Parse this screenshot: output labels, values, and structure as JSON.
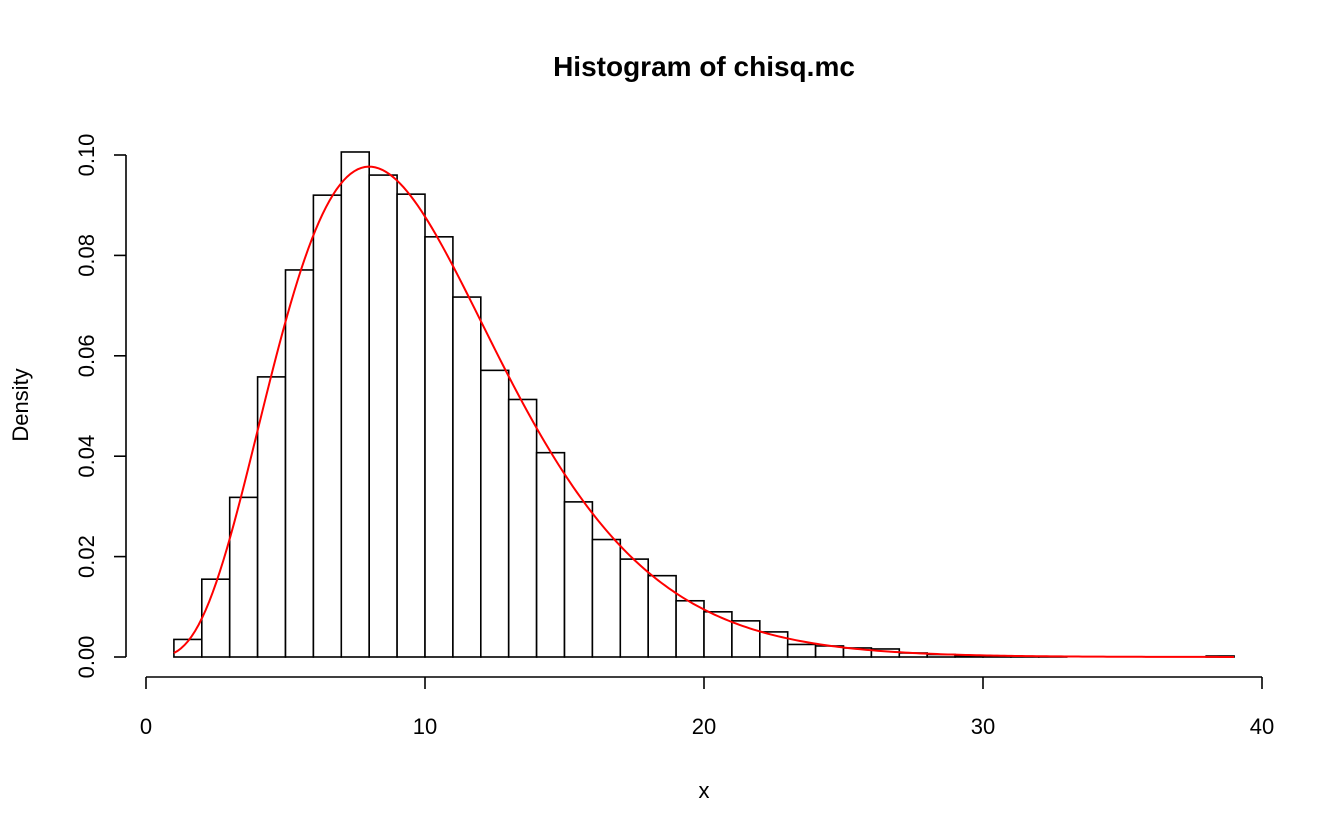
{
  "chart_data": {
    "type": "bar",
    "title": "Histogram of chisq.mc",
    "xlabel": "x",
    "ylabel": "Density",
    "xlim": [
      0,
      40
    ],
    "ylim": [
      0,
      0.1
    ],
    "x_ticks": [
      "0",
      "10",
      "20",
      "30",
      "40"
    ],
    "y_ticks": [
      "0.00",
      "0.02",
      "0.04",
      "0.06",
      "0.08",
      "0.10"
    ],
    "grid": false,
    "bin_width": 1,
    "bins": [
      {
        "x0": 1,
        "x1": 2,
        "density": 0.0035
      },
      {
        "x0": 2,
        "x1": 3,
        "density": 0.0155
      },
      {
        "x0": 3,
        "x1": 4,
        "density": 0.0318
      },
      {
        "x0": 4,
        "x1": 5,
        "density": 0.0558
      },
      {
        "x0": 5,
        "x1": 6,
        "density": 0.0771
      },
      {
        "x0": 6,
        "x1": 7,
        "density": 0.092
      },
      {
        "x0": 7,
        "x1": 8,
        "density": 0.1006
      },
      {
        "x0": 8,
        "x1": 9,
        "density": 0.096
      },
      {
        "x0": 9,
        "x1": 10,
        "density": 0.0922
      },
      {
        "x0": 10,
        "x1": 11,
        "density": 0.0837
      },
      {
        "x0": 11,
        "x1": 12,
        "density": 0.0717
      },
      {
        "x0": 12,
        "x1": 13,
        "density": 0.0571
      },
      {
        "x0": 13,
        "x1": 14,
        "density": 0.0513
      },
      {
        "x0": 14,
        "x1": 15,
        "density": 0.0407
      },
      {
        "x0": 15,
        "x1": 16,
        "density": 0.0309
      },
      {
        "x0": 16,
        "x1": 17,
        "density": 0.0234
      },
      {
        "x0": 17,
        "x1": 18,
        "density": 0.0195
      },
      {
        "x0": 18,
        "x1": 19,
        "density": 0.0162
      },
      {
        "x0": 19,
        "x1": 20,
        "density": 0.0112
      },
      {
        "x0": 20,
        "x1": 21,
        "density": 0.009
      },
      {
        "x0": 21,
        "x1": 22,
        "density": 0.0072
      },
      {
        "x0": 22,
        "x1": 23,
        "density": 0.005
      },
      {
        "x0": 23,
        "x1": 24,
        "density": 0.0025
      },
      {
        "x0": 24,
        "x1": 25,
        "density": 0.0022
      },
      {
        "x0": 25,
        "x1": 26,
        "density": 0.0018
      },
      {
        "x0": 26,
        "x1": 27,
        "density": 0.0016
      },
      {
        "x0": 27,
        "x1": 28,
        "density": 0.0008
      },
      {
        "x0": 28,
        "x1": 29,
        "density": 0.0005
      },
      {
        "x0": 29,
        "x1": 30,
        "density": 0.0003
      },
      {
        "x0": 30,
        "x1": 31,
        "density": 0.0002
      },
      {
        "x0": 31,
        "x1": 32,
        "density": 0.0001
      },
      {
        "x0": 32,
        "x1": 33,
        "density": 0.0001
      },
      {
        "x0": 33,
        "x1": 34,
        "density": 0.0
      },
      {
        "x0": 34,
        "x1": 35,
        "density": 0.0
      },
      {
        "x0": 35,
        "x1": 36,
        "density": 0.0
      },
      {
        "x0": 36,
        "x1": 37,
        "density": 0.0
      },
      {
        "x0": 37,
        "x1": 38,
        "density": 0.0
      },
      {
        "x0": 38,
        "x1": 39,
        "density": 0.0002
      }
    ],
    "density_curve": {
      "distribution": "chi-squared",
      "df": 10,
      "x_range": [
        1,
        39
      ],
      "color": "#ff0000"
    },
    "bar_fill": "#ffffff",
    "bar_stroke": "#000000"
  }
}
